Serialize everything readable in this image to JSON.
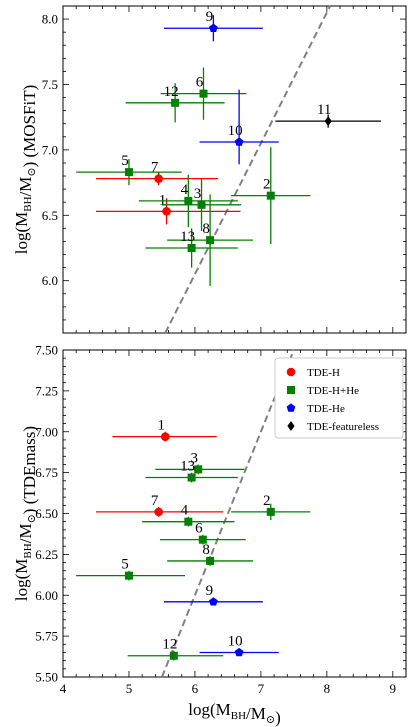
{
  "chart_data": [
    {
      "type": "scatter",
      "panel": "top",
      "xlabel": "",
      "ylabel": "log(M_BH/M_⊙) (MOSFiT)",
      "xlim": [
        4,
        9.2
      ],
      "ylim": [
        5.6,
        8.1
      ],
      "x_ticks": [],
      "y_ticks": [
        "6.0",
        "6.5",
        "7.0",
        "7.5",
        "8.0"
      ],
      "y_tick_values": [
        6.0,
        6.5,
        7.0,
        7.5,
        8.0
      ],
      "reference_line": {
        "style": "dashed",
        "color": "#808080",
        "points": [
          [
            5.55,
            5.6
          ],
          [
            8.05,
            8.1
          ]
        ]
      },
      "series": [
        {
          "name": "TDE-H",
          "color": "#ff0000",
          "marker": "circle",
          "points": [
            {
              "label": "1",
              "x": 5.57,
              "y": 6.53,
              "xerr": [
                1.07,
                1.12
              ],
              "yerr": [
                0.1,
                0.1
              ]
            },
            {
              "label": "7",
              "x": 5.45,
              "y": 6.78,
              "xerr": [
                0.95,
                0.9
              ],
              "yerr": [
                0.05,
                0.05
              ]
            }
          ]
        },
        {
          "name": "TDE-H+He",
          "color": "#008000",
          "marker": "square",
          "points": [
            {
              "label": "2",
              "x": 7.15,
              "y": 6.65,
              "xerr": [
                0.6,
                0.6
              ],
              "yerr": [
                0.37,
                0.37
              ]
            },
            {
              "label": "3",
              "x": 6.1,
              "y": 6.58,
              "xerr": [
                0.6,
                0.6
              ],
              "yerr": [
                0.2,
                0.2
              ]
            },
            {
              "label": "4",
              "x": 5.9,
              "y": 6.61,
              "xerr": [
                0.75,
                0.75
              ],
              "yerr": [
                0.2,
                0.2
              ]
            },
            {
              "label": "5",
              "x": 5.0,
              "y": 6.83,
              "xerr": [
                0.8,
                0.8
              ],
              "yerr": [
                0.1,
                0.1
              ]
            },
            {
              "label": "6",
              "x": 6.13,
              "y": 7.43,
              "xerr": [
                0.65,
                0.65
              ],
              "yerr": [
                0.2,
                0.2
              ]
            },
            {
              "label": "8",
              "x": 6.23,
              "y": 6.31,
              "xerr": [
                0.65,
                0.65
              ],
              "yerr": [
                0.35,
                0.35
              ]
            },
            {
              "label": "12",
              "x": 5.7,
              "y": 7.36,
              "xerr": [
                0.75,
                0.75
              ],
              "yerr": [
                0.15,
                0.15
              ]
            },
            {
              "label": "13",
              "x": 5.95,
              "y": 6.25,
              "xerr": [
                0.7,
                0.7
              ],
              "yerr": [
                0.15,
                0.15
              ]
            }
          ]
        },
        {
          "name": "TDE-He",
          "color": "#0000ff",
          "marker": "pentagon",
          "points": [
            {
              "label": "9",
              "x": 6.28,
              "y": 7.93,
              "xerr": [
                0.75,
                0.75
              ],
              "yerr": [
                0.1,
                0.1
              ]
            },
            {
              "label": "10",
              "x": 6.67,
              "y": 7.06,
              "xerr": [
                0.6,
                0.6
              ],
              "yerr": [
                0.17,
                0.4
              ]
            }
          ]
        },
        {
          "name": "TDE-featureless",
          "color": "#000000",
          "marker": "diamond",
          "points": [
            {
              "label": "11",
              "x": 8.02,
              "y": 7.22,
              "xerr": [
                0.8,
                0.8
              ],
              "yerr": [
                0.05,
                0.05
              ]
            }
          ]
        }
      ]
    },
    {
      "type": "scatter",
      "panel": "bottom",
      "xlabel": "log(M_BH/M_⊙)",
      "ylabel": "log(M_BH/M_⊙) (TDEmass)",
      "xlim": [
        4,
        9.2
      ],
      "ylim": [
        5.5,
        7.5
      ],
      "x_ticks": [
        "4",
        "5",
        "6",
        "7",
        "8",
        "9"
      ],
      "x_tick_values": [
        4,
        5,
        6,
        7,
        8,
        9
      ],
      "y_ticks": [
        "5.50",
        "5.75",
        "6.00",
        "6.25",
        "6.50",
        "6.75",
        "7.00",
        "7.25",
        "7.50"
      ],
      "y_tick_values": [
        5.5,
        5.75,
        6.0,
        6.25,
        6.5,
        6.75,
        7.0,
        7.25,
        7.5
      ],
      "reference_line": {
        "style": "dashed",
        "color": "#808080",
        "points": [
          [
            5.5,
            5.5
          ],
          [
            7.5,
            7.5
          ]
        ]
      },
      "legend": {
        "placement": "top-right",
        "entries": [
          "TDE-H",
          "TDE-H+He",
          "TDE-He",
          "TDE-featureless"
        ]
      },
      "series": [
        {
          "name": "TDE-H",
          "color": "#ff0000",
          "marker": "circle",
          "points": [
            {
              "label": "1",
              "x": 5.55,
              "y": 6.97,
              "xerr": [
                0.8,
                0.78
              ],
              "yerr": [
                0.03,
                0.03
              ]
            },
            {
              "label": "7",
              "x": 5.45,
              "y": 6.51,
              "xerr": [
                0.95,
                0.98
              ],
              "yerr": [
                0.03,
                0.03
              ]
            }
          ]
        },
        {
          "name": "TDE-H+He",
          "color": "#008000",
          "marker": "square",
          "points": [
            {
              "label": "2",
              "x": 7.15,
              "y": 6.51,
              "xerr": [
                0.6,
                0.6
              ],
              "yerr": [
                0.05,
                0.05
              ]
            },
            {
              "label": "3",
              "x": 6.05,
              "y": 6.77,
              "xerr": [
                0.65,
                0.7
              ],
              "yerr": [
                0.03,
                0.03
              ]
            },
            {
              "label": "4",
              "x": 5.9,
              "y": 6.45,
              "xerr": [
                0.7,
                0.7
              ],
              "yerr": [
                0.03,
                0.03
              ]
            },
            {
              "label": "5",
              "x": 5.0,
              "y": 6.12,
              "xerr": [
                0.8,
                0.85
              ],
              "yerr": [
                0.03,
                0.03
              ]
            },
            {
              "label": "6",
              "x": 6.12,
              "y": 6.34,
              "xerr": [
                0.65,
                0.65
              ],
              "yerr": [
                0.03,
                0.03
              ]
            },
            {
              "label": "8",
              "x": 6.23,
              "y": 6.21,
              "xerr": [
                0.65,
                0.65
              ],
              "yerr": [
                0.03,
                0.03
              ]
            },
            {
              "label": "12",
              "x": 5.68,
              "y": 5.63,
              "xerr": [
                0.7,
                0.75
              ],
              "yerr": [
                0.03,
                0.03
              ]
            },
            {
              "label": "13",
              "x": 5.95,
              "y": 6.72,
              "xerr": [
                0.7,
                0.7
              ],
              "yerr": [
                0.03,
                0.03
              ]
            }
          ]
        },
        {
          "name": "TDE-He",
          "color": "#0000ff",
          "marker": "pentagon",
          "points": [
            {
              "label": "9",
              "x": 6.28,
              "y": 5.96,
              "xerr": [
                0.75,
                0.75
              ],
              "yerr": [
                0.01,
                0.01
              ]
            },
            {
              "label": "10",
              "x": 6.67,
              "y": 5.65,
              "xerr": [
                0.6,
                0.6
              ],
              "yerr": [
                0.01,
                0.01
              ]
            }
          ]
        },
        {
          "name": "TDE-featureless",
          "color": "#000000",
          "marker": "diamond",
          "points": []
        }
      ]
    }
  ]
}
